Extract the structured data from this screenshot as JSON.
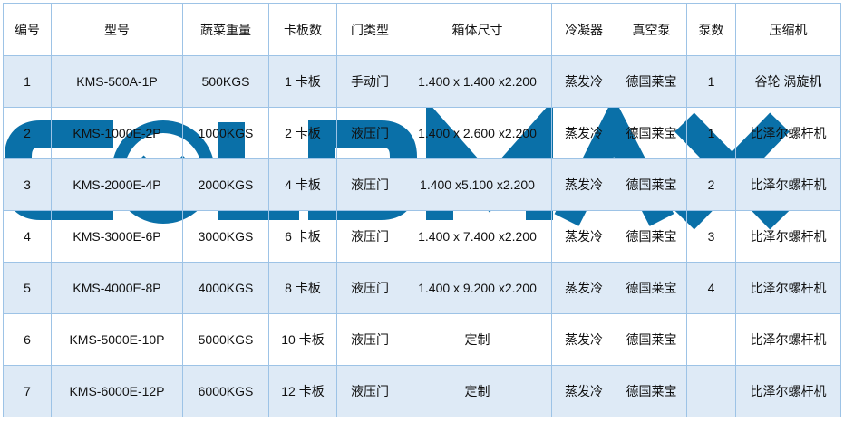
{
  "watermark": {
    "text": "COLDMAX",
    "color": "#0a70a8"
  },
  "colors": {
    "row_alt": "#deeaf6",
    "border": "#9dc3e6"
  },
  "table": {
    "headers": [
      "编号",
      "型号",
      "蔬菜重量",
      "卡板数",
      "门类型",
      "箱体尺寸",
      "冷凝器",
      "真空泵",
      "泵数",
      "压缩机"
    ],
    "rows": [
      [
        "1",
        "KMS-500A-1P",
        "500KGS",
        "1 卡板",
        "手动门",
        "1.400 x 1.400 x2.200",
        "蒸发冷",
        "德国莱宝",
        "1",
        "谷轮 涡旋机"
      ],
      [
        "2",
        "KMS-1000E-2P",
        "1000KGS",
        "2 卡板",
        "液压门",
        "1.400 x 2.600 x2.200",
        "蒸发冷",
        "德国莱宝",
        "1",
        "比泽尔螺杆机"
      ],
      [
        "3",
        "KMS-2000E-4P",
        "2000KGS",
        "4 卡板",
        "液压门",
        "1.400 x5.100 x2.200",
        "蒸发冷",
        "德国莱宝",
        "2",
        "比泽尔螺杆机"
      ],
      [
        "4",
        "KMS-3000E-6P",
        "3000KGS",
        "6 卡板",
        "液压门",
        "1.400 x 7.400 x2.200",
        "蒸发冷",
        "德国莱宝",
        "3",
        "比泽尔螺杆机"
      ],
      [
        "5",
        "KMS-4000E-8P",
        "4000KGS",
        "8 卡板",
        "液压门",
        "1.400 x 9.200 x2.200",
        "蒸发冷",
        "德国莱宝",
        "4",
        "比泽尔螺杆机"
      ],
      [
        "6",
        "KMS-5000E-10P",
        "5000KGS",
        "10 卡板",
        "液压门",
        "定制",
        "蒸发冷",
        "德国莱宝",
        "",
        "比泽尔螺杆机"
      ],
      [
        "7",
        "KMS-6000E-12P",
        "6000KGS",
        "12 卡板",
        "液压门",
        "定制",
        "蒸发冷",
        "德国莱宝",
        "",
        "比泽尔螺杆机"
      ]
    ]
  }
}
